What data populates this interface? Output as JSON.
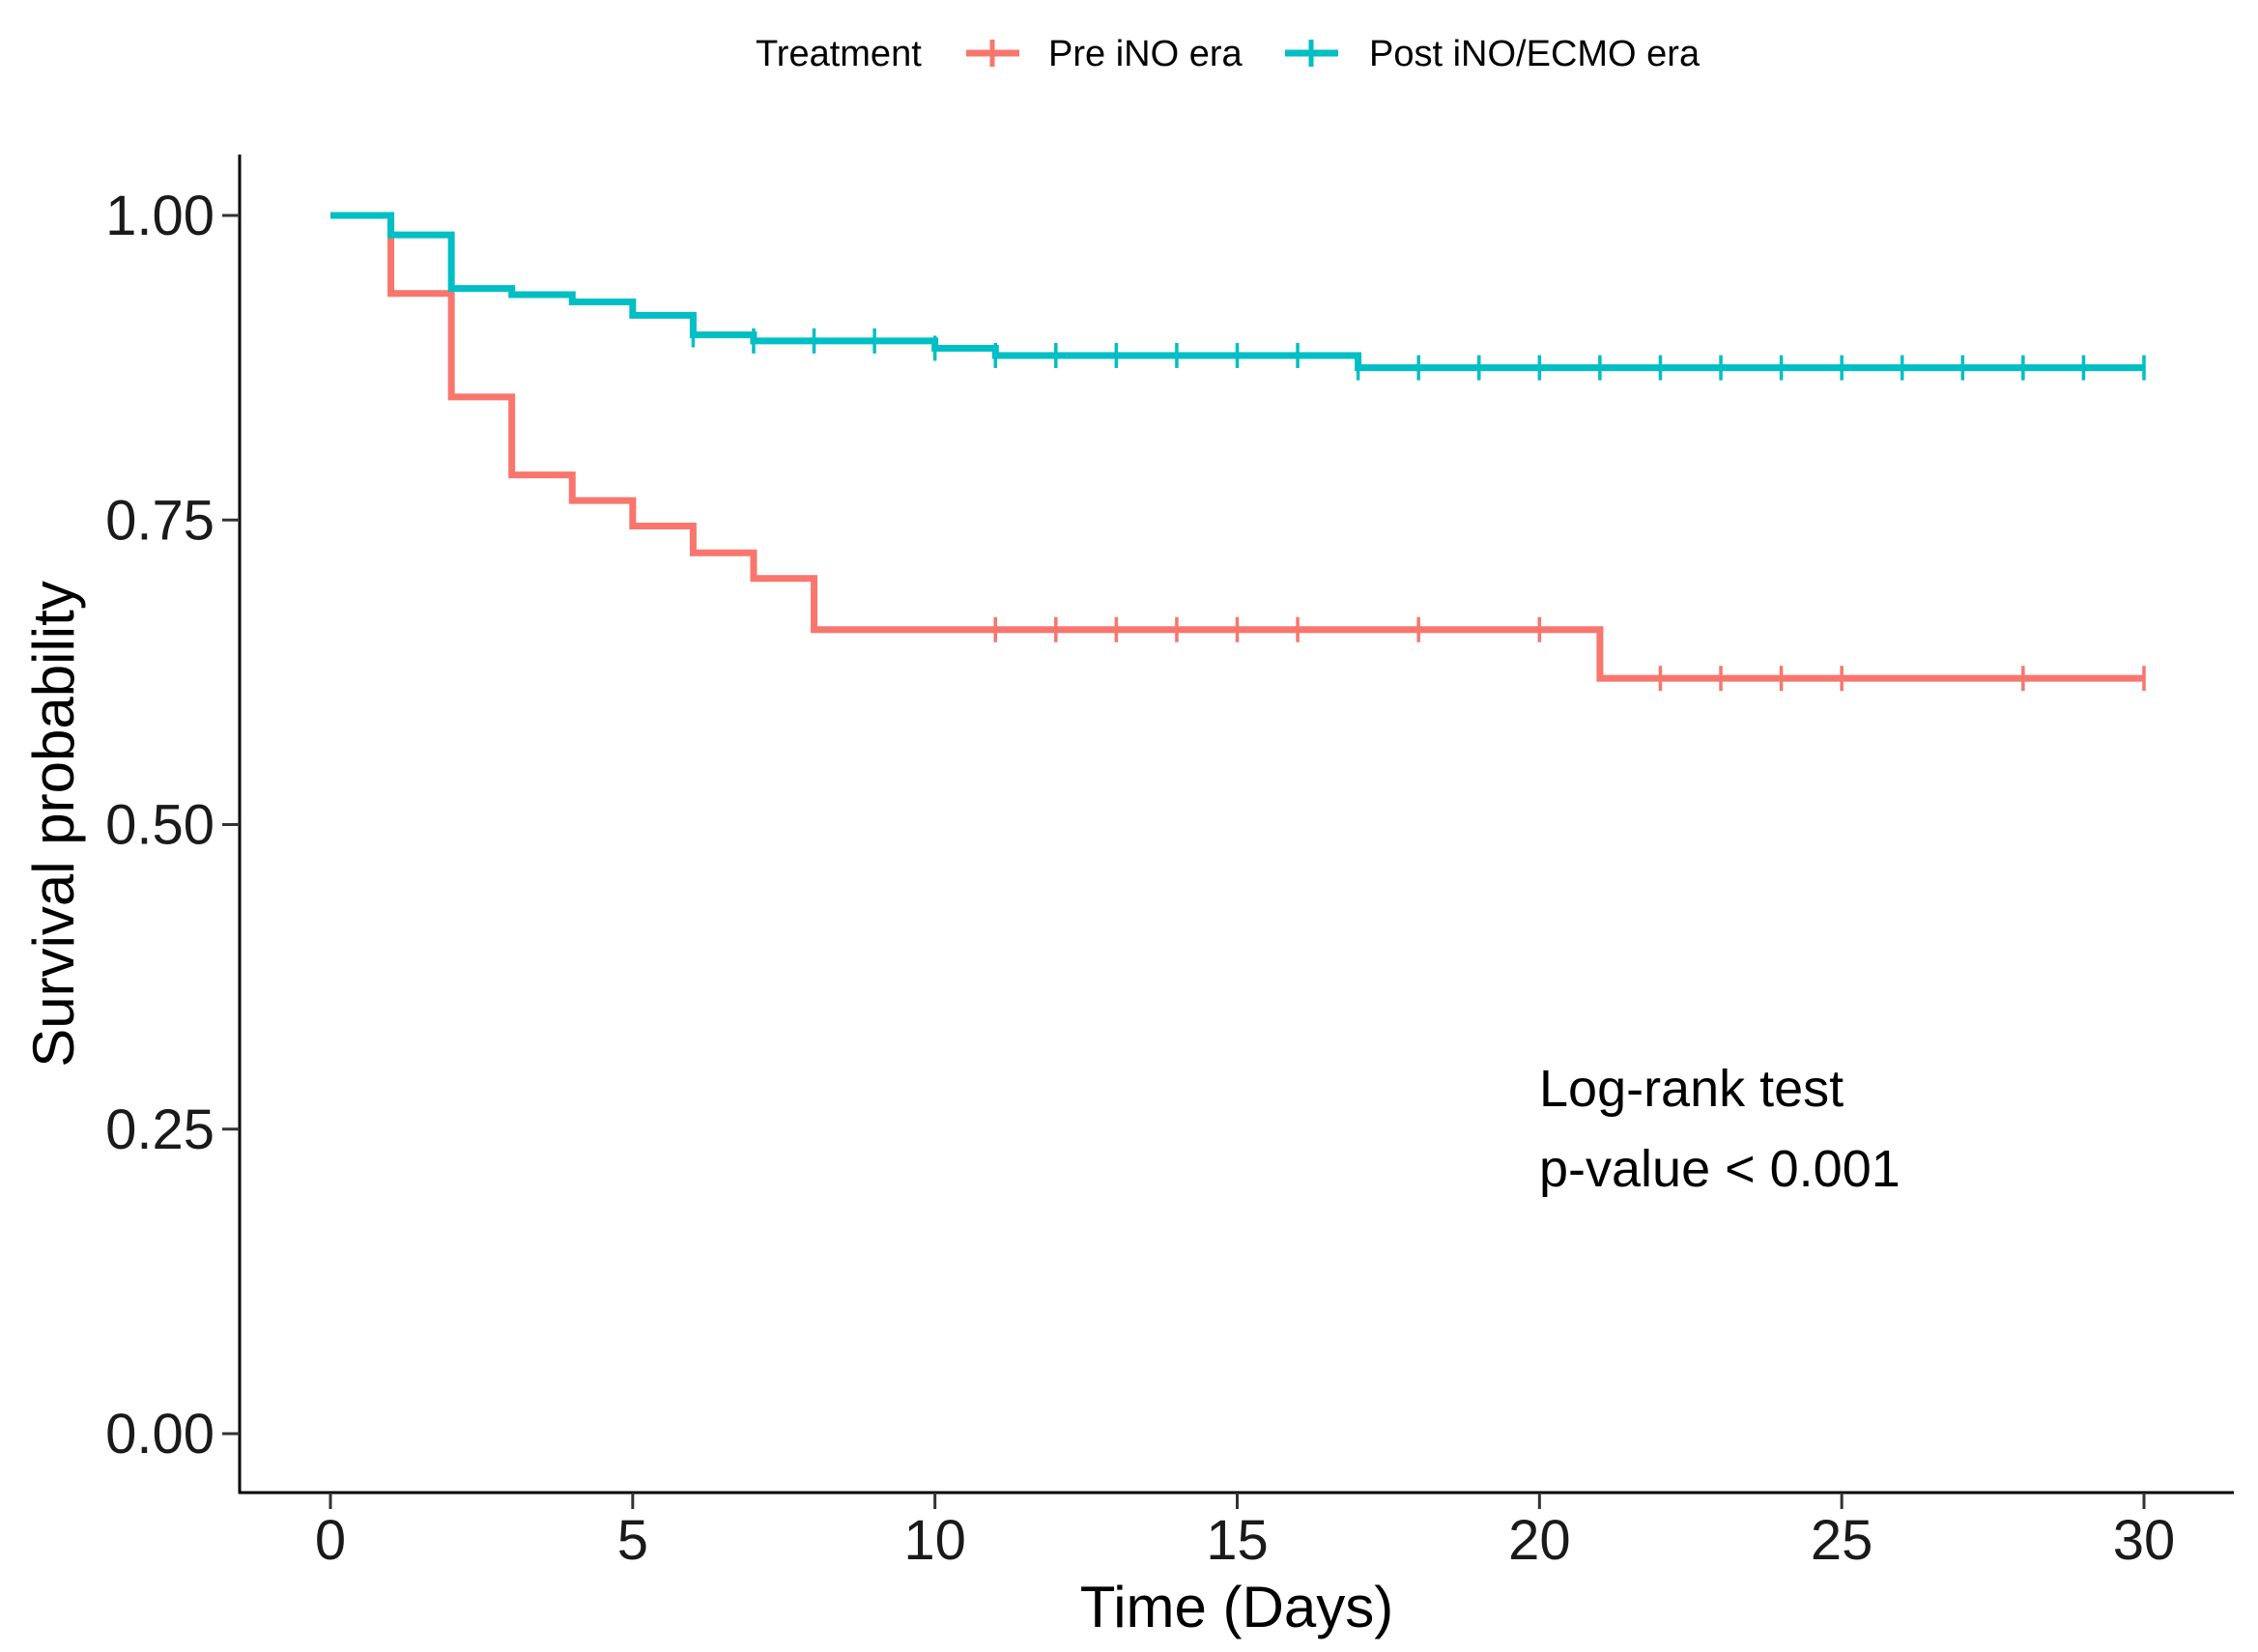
{
  "chart_data": {
    "type": "line",
    "subtype": "kaplan-meier step",
    "title": "",
    "xlabel": "Time (Days)",
    "ylabel": "Survival probability",
    "xlim": [
      0,
      30
    ],
    "ylim": [
      0,
      1
    ],
    "x_ticks": [
      0,
      5,
      10,
      15,
      20,
      25,
      30
    ],
    "x_tick_labels": [
      "0",
      "5",
      "10",
      "15",
      "20",
      "25",
      "30"
    ],
    "y_ticks": [
      0,
      0.25,
      0.5,
      0.75,
      1.0
    ],
    "y_tick_labels": [
      "0.00",
      "0.25",
      "0.50",
      "0.75",
      "1.00"
    ],
    "grid": false,
    "legend": {
      "title": "Treatment",
      "position": "top",
      "entries": [
        "Pre iNO era",
        "Post iNO/ECMO era"
      ]
    },
    "series": [
      {
        "name": "Pre iNO era",
        "color": "#F8766D",
        "steps": [
          [
            0,
            1.0
          ],
          [
            1,
            0.936
          ],
          [
            2,
            0.851
          ],
          [
            3,
            0.787
          ],
          [
            4,
            0.766
          ],
          [
            5,
            0.745
          ],
          [
            6,
            0.723
          ],
          [
            7,
            0.702
          ],
          [
            8,
            0.66
          ],
          [
            21,
            0.62
          ]
        ],
        "end_x": 30,
        "censor_x": [
          11,
          12,
          13,
          14,
          15,
          16,
          18,
          20,
          22,
          23,
          24,
          25,
          28,
          30
        ]
      },
      {
        "name": "Post iNO/ECMO era",
        "color": "#00BFC4",
        "steps": [
          [
            0,
            1.0
          ],
          [
            1,
            0.984
          ],
          [
            2,
            0.94
          ],
          [
            3,
            0.935
          ],
          [
            4,
            0.929
          ],
          [
            5,
            0.918
          ],
          [
            6,
            0.902
          ],
          [
            7,
            0.897
          ],
          [
            10,
            0.891
          ],
          [
            11,
            0.885
          ],
          [
            17,
            0.875
          ]
        ],
        "end_x": 30,
        "censor_x": [
          6,
          7,
          8,
          9,
          10,
          11,
          12,
          13,
          14,
          15,
          16,
          17,
          18,
          19,
          20,
          21,
          22,
          23,
          24,
          25,
          26,
          27,
          28,
          29,
          30
        ]
      }
    ],
    "annotations": [
      "Log-rank test",
      "p-value < 0.001"
    ]
  }
}
